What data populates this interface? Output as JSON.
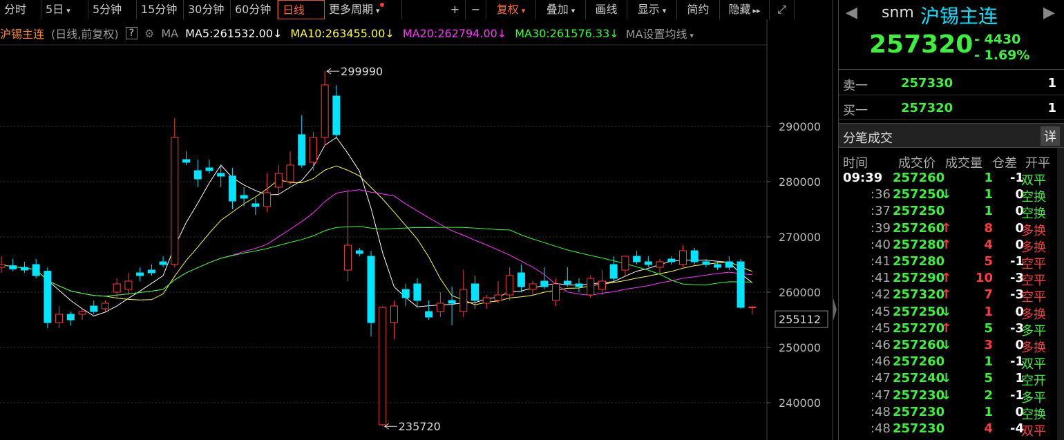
{
  "toolbar": {
    "left": [
      "分时",
      "5日",
      "5分钟",
      "15分钟",
      "30分钟",
      "60分钟",
      "日线",
      "更多周期"
    ],
    "right": [
      "+",
      "−",
      "复权",
      "叠加",
      "画线",
      "显示",
      "简约",
      "隐藏"
    ]
  },
  "legend": {
    "symbol": "沪锡主连",
    "mode": "(日线,前复权)",
    "help": "?",
    "ma_title": "MA",
    "settings": "MA设置均线"
  },
  "chart_data": {
    "type": "candlestick",
    "open": [
      264500,
      264800,
      264500,
      265000,
      263800,
      254500,
      256000,
      256000,
      257500,
      257000,
      260000,
      260500,
      263500,
      264000,
      265500,
      265000,
      284000,
      282000,
      282500,
      281500,
      281000,
      277500,
      276000,
      275500,
      279000,
      280000,
      288500,
      283500,
      288000,
      295500,
      264000,
      267500,
      266500,
      236000,
      254500,
      260500,
      261500,
      256500,
      256500,
      258500,
      256500,
      261500,
      258000,
      258500,
      259500,
      263500,
      260500,
      262000,
      258500,
      262000,
      261500,
      259500,
      260500,
      265000,
      264000,
      266500,
      265500,
      264500,
      266000,
      265000,
      267500,
      265500,
      265000,
      265500,
      265500,
      257300
    ],
    "high": [
      266500,
      266000,
      265500,
      266000,
      264500,
      257500,
      256500,
      257000,
      258500,
      258500,
      262500,
      263500,
      264500,
      265000,
      266500,
      291500,
      285500,
      284000,
      284000,
      283000,
      282500,
      279000,
      277000,
      281500,
      283000,
      285500,
      292000,
      289000,
      299990,
      297500,
      278500,
      268000,
      267500,
      257500,
      258500,
      261500,
      262500,
      258500,
      260000,
      261000,
      264000,
      263000,
      259500,
      262000,
      264500,
      265000,
      262000,
      264500,
      262500,
      264500,
      262500,
      263000,
      264000,
      266500,
      266500,
      267500,
      266500,
      266000,
      266500,
      268500,
      268000,
      266000,
      265500,
      266500,
      266000,
      257500
    ],
    "low": [
      263500,
      263800,
      263500,
      262500,
      253500,
      253500,
      254000,
      255000,
      256000,
      256500,
      259000,
      259500,
      262000,
      263000,
      264500,
      264500,
      283000,
      279000,
      281500,
      279000,
      275000,
      275500,
      274000,
      274500,
      277500,
      279500,
      282500,
      282000,
      286500,
      288000,
      262000,
      266500,
      252000,
      235720,
      251500,
      257500,
      257500,
      255000,
      255500,
      254000,
      255500,
      257000,
      257000,
      258000,
      258500,
      260000,
      259500,
      260500,
      257500,
      261000,
      260000,
      259000,
      259500,
      262000,
      263000,
      265000,
      264500,
      263500,
      265000,
      264500,
      265000,
      264500,
      264000,
      264000,
      257000,
      256000
    ],
    "close": [
      265000,
      264200,
      264000,
      263000,
      254500,
      256000,
      255000,
      256500,
      256500,
      258000,
      261500,
      262000,
      263000,
      263500,
      265000,
      288000,
      283500,
      280500,
      282000,
      281000,
      276500,
      277000,
      275500,
      278000,
      281500,
      283000,
      283000,
      288000,
      297500,
      288500,
      268500,
      267000,
      254500,
      257250,
      257500,
      259000,
      258500,
      255500,
      258000,
      258000,
      260500,
      258500,
      259000,
      259500,
      263000,
      261000,
      261500,
      261000,
      261500,
      261500,
      261000,
      262500,
      262000,
      262500,
      266500,
      265500,
      265000,
      265500,
      265500,
      267500,
      265500,
      265000,
      264500,
      264500,
      257250,
      257320
    ],
    "ylim": [
      233250,
      304750
    ],
    "yticks": [
      240000,
      250000,
      260000,
      270000,
      280000,
      290000
    ],
    "grid": true,
    "up_color": "#ff3c3c",
    "down_color": "#00e5ff",
    "ma": [
      {
        "label": "MA5:261532.00↓",
        "period": 5,
        "color": "#ffffff"
      },
      {
        "label": "MA10:263455.00↓",
        "period": 10,
        "color": "#ffff33"
      },
      {
        "label": "MA20:262794.00↓",
        "period": 20,
        "color": "#ff33ff"
      },
      {
        "label": "MA30:261576.33↓",
        "period": 30,
        "color": "#33ff33"
      }
    ],
    "price_marker": 255112
  },
  "quote": {
    "code": "snm",
    "name": "沪锡主连",
    "price": "257320",
    "change": "- 4430",
    "pct": "- 1.69%"
  },
  "book": [
    {
      "side": "卖一",
      "price": "257330",
      "qty": "1"
    },
    {
      "side": "买一",
      "price": "257320",
      "qty": "1"
    }
  ],
  "trades": {
    "title": "分笔成交",
    "detail": "详",
    "columns": [
      "时间",
      "成交价",
      "成交量",
      "仓差",
      "开平"
    ],
    "rows": [
      {
        "time": "09:39",
        "price": "257260",
        "dir": "",
        "vol": "1",
        "diff": "-1",
        "kind": "双平",
        "color": "#3cf03c"
      },
      {
        "time": ":36",
        "price": "257250",
        "dir": "↓",
        "vol": "1",
        "diff": "0",
        "kind": "空换",
        "color": "#3cf03c"
      },
      {
        "time": ":37",
        "price": "257250",
        "dir": "",
        "vol": "1",
        "diff": "0",
        "kind": "空换",
        "color": "#3cf03c"
      },
      {
        "time": ":39",
        "price": "257260",
        "dir": "↑",
        "vol": "8",
        "diff": "0",
        "kind": "多换",
        "color": "#ff3c3c"
      },
      {
        "time": ":40",
        "price": "257280",
        "dir": "↑",
        "vol": "4",
        "diff": "0",
        "kind": "多换",
        "color": "#ff3c3c"
      },
      {
        "time": ":41",
        "price": "257280",
        "dir": "",
        "vol": "5",
        "diff": "-1",
        "kind": "空平",
        "color": "#ff3c3c"
      },
      {
        "time": ":41",
        "price": "257290",
        "dir": "↑",
        "vol": "10",
        "diff": "-3",
        "kind": "空平",
        "color": "#ff3c3c"
      },
      {
        "time": ":42",
        "price": "257320",
        "dir": "↑",
        "vol": "7",
        "diff": "-3",
        "kind": "空平",
        "color": "#ff3c3c"
      },
      {
        "time": ":45",
        "price": "257250",
        "dir": "↓",
        "vol": "1",
        "diff": "0",
        "kind": "多换",
        "color": "#ff3c3c"
      },
      {
        "time": ":45",
        "price": "257270",
        "dir": "↑",
        "vol": "5",
        "diff": "-3",
        "kind": "多平",
        "color": "#3cf03c"
      },
      {
        "time": ":46",
        "price": "257260",
        "dir": "↓",
        "vol": "3",
        "diff": "0",
        "kind": "多换",
        "color": "#ff3c3c"
      },
      {
        "time": ":46",
        "price": "257260",
        "dir": "",
        "vol": "1",
        "diff": "-1",
        "kind": "双平",
        "color": "#3cf03c"
      },
      {
        "time": ":47",
        "price": "257240",
        "dir": "↓",
        "vol": "5",
        "diff": "1",
        "kind": "空开",
        "color": "#3cf03c"
      },
      {
        "time": ":47",
        "price": "257230",
        "dir": "↓",
        "vol": "2",
        "diff": "-1",
        "kind": "多平",
        "color": "#3cf03c"
      },
      {
        "time": ":48",
        "price": "257230",
        "dir": "",
        "vol": "1",
        "diff": "0",
        "kind": "空换",
        "color": "#3cf03c"
      },
      {
        "time": ":48",
        "price": "257230",
        "dir": "",
        "vol": "4",
        "diff": "-4",
        "kind": "双平",
        "color": "#ff3c3c"
      }
    ]
  }
}
